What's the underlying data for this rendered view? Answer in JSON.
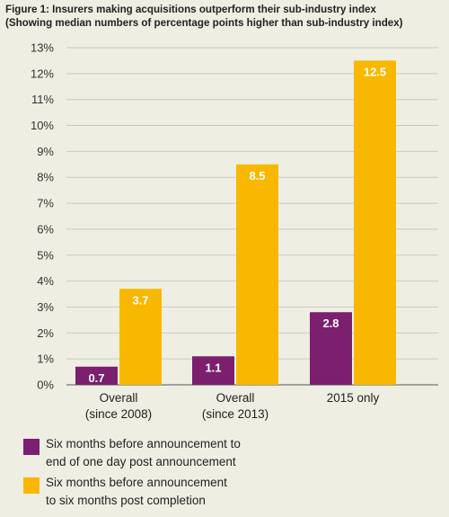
{
  "header": {
    "title": "Figure 1: Insurers making acquisitions outperform their sub-industry index",
    "subtitle": "(Showing median numbers of percentage points higher than sub-industry index)"
  },
  "colors": {
    "series1": "#7b1f6e",
    "series2": "#f8b800",
    "gridline": "#c9c9c0",
    "axis": "#555555",
    "background": "#efeee2"
  },
  "chart_data": {
    "type": "bar",
    "categories": [
      [
        "Overall",
        "(since 2008)"
      ],
      [
        "Overall",
        "(since 2013)"
      ],
      [
        "2015 only"
      ]
    ],
    "series": [
      {
        "name": "Six months before announcement to end of one day post announcement",
        "values": [
          0.7,
          1.1,
          2.8
        ],
        "labels": [
          "0.7",
          "1.1",
          "2.8"
        ]
      },
      {
        "name": "Six months before announcement to six months post completion",
        "values": [
          3.7,
          8.5,
          12.5
        ],
        "labels": [
          "3.7",
          "8.5",
          "12.5"
        ]
      }
    ],
    "ylim": [
      0,
      13
    ],
    "yticks": [
      "0%",
      "1%",
      "2%",
      "3%",
      "4%",
      "5%",
      "6%",
      "7%",
      "8%",
      "9%",
      "10%",
      "11%",
      "12%",
      "13%"
    ],
    "grid": true,
    "legend_position": "bottom"
  },
  "legend": {
    "items": [
      {
        "lines": [
          "Six months before announcement to",
          "end of one day post announcement"
        ]
      },
      {
        "lines": [
          "Six months before announcement",
          "to six months post completion"
        ]
      }
    ]
  }
}
